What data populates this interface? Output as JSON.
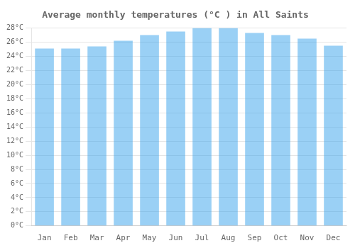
{
  "chart_data": {
    "type": "bar",
    "title": "Average monthly temperatures (°C ) in All Saints",
    "categories": [
      "Jan",
      "Feb",
      "Mar",
      "Apr",
      "May",
      "Jun",
      "Jul",
      "Aug",
      "Sep",
      "Oct",
      "Nov",
      "Dec"
    ],
    "values": [
      25.1,
      25.1,
      25.4,
      26.2,
      27.0,
      27.5,
      28.0,
      28.0,
      27.3,
      27.0,
      26.5,
      25.5
    ],
    "ylim": [
      0,
      28
    ],
    "yticks": [
      {
        "value": 0,
        "label": "0°C"
      },
      {
        "value": 2,
        "label": "2°C"
      },
      {
        "value": 4,
        "label": "4°C"
      },
      {
        "value": 6,
        "label": "6°C"
      },
      {
        "value": 8,
        "label": "8°C"
      },
      {
        "value": 10,
        "label": "10°C"
      },
      {
        "value": 12,
        "label": "12°C"
      },
      {
        "value": 14,
        "label": "14°C"
      },
      {
        "value": 16,
        "label": "16°C"
      },
      {
        "value": 18,
        "label": "18°C"
      },
      {
        "value": 20,
        "label": "20°C"
      },
      {
        "value": 22,
        "label": "22°C"
      },
      {
        "value": 24,
        "label": "24°C"
      },
      {
        "value": 26,
        "label": "26°C"
      },
      {
        "value": 28,
        "label": "28°C"
      }
    ],
    "grid": true
  }
}
